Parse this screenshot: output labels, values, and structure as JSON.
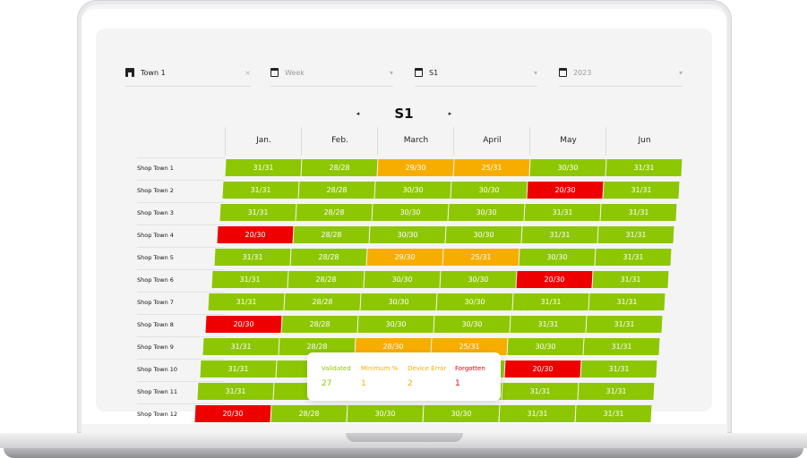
{
  "filters": {
    "shop": {
      "value": "Town 1",
      "clear": "×",
      "icon": "shop-icon"
    },
    "frequency": {
      "placeholder": "Week",
      "icon": "calendar-icon"
    },
    "period": {
      "value": "S1",
      "icon": "calendar-icon"
    },
    "year": {
      "placeholder": "2023",
      "icon": "calendar-icon"
    }
  },
  "nav": {
    "prev": "◂",
    "current": "S1",
    "next": "▸"
  },
  "months": [
    "Jan.",
    "Feb.",
    "March",
    "April",
    "May",
    "Jun"
  ],
  "colors": {
    "validated": "#8dc703",
    "minimum": "#f7ad00",
    "forgotten": "#ee0000"
  },
  "rows": [
    {
      "label": "Shop Town 1",
      "cells": [
        [
          "31/31",
          "green"
        ],
        [
          "28/28",
          "green"
        ],
        [
          "29/30",
          "orange"
        ],
        [
          "25/31",
          "orange"
        ],
        [
          "30/30",
          "green"
        ],
        [
          "31/31",
          "green"
        ]
      ]
    },
    {
      "label": "Shop Town 2",
      "cells": [
        [
          "31/31",
          "green"
        ],
        [
          "28/28",
          "green"
        ],
        [
          "30/30",
          "green"
        ],
        [
          "30/30",
          "green"
        ],
        [
          "20/30",
          "red"
        ],
        [
          "31/31",
          "green"
        ]
      ]
    },
    {
      "label": "Shop Town 3",
      "cells": [
        [
          "31/31",
          "green"
        ],
        [
          "28/28",
          "green"
        ],
        [
          "30/30",
          "green"
        ],
        [
          "30/30",
          "green"
        ],
        [
          "31/31",
          "green"
        ],
        [
          "31/31",
          "green"
        ]
      ]
    },
    {
      "label": "Shop Town 4",
      "cells": [
        [
          "20/30",
          "red"
        ],
        [
          "28/28",
          "green"
        ],
        [
          "30/30",
          "green"
        ],
        [
          "30/30",
          "green"
        ],
        [
          "31/31",
          "green"
        ],
        [
          "31/31",
          "green"
        ]
      ]
    },
    {
      "label": "Shop Town 5",
      "cells": [
        [
          "31/31",
          "green"
        ],
        [
          "28/28",
          "green"
        ],
        [
          "29/30",
          "orange"
        ],
        [
          "25/31",
          "orange"
        ],
        [
          "30/30",
          "green"
        ],
        [
          "31/31",
          "green"
        ]
      ]
    },
    {
      "label": "Shop Town 6",
      "cells": [
        [
          "31/31",
          "green"
        ],
        [
          "28/28",
          "green"
        ],
        [
          "30/30",
          "green"
        ],
        [
          "30/30",
          "green"
        ],
        [
          "20/30",
          "red"
        ],
        [
          "31/31",
          "green"
        ]
      ]
    },
    {
      "label": "Shop Town 7",
      "cells": [
        [
          "31/31",
          "green"
        ],
        [
          "28/28",
          "green"
        ],
        [
          "30/30",
          "green"
        ],
        [
          "30/30",
          "green"
        ],
        [
          "31/31",
          "green"
        ],
        [
          "31/31",
          "green"
        ]
      ]
    },
    {
      "label": "Shop Town 8",
      "cells": [
        [
          "20/30",
          "red"
        ],
        [
          "28/28",
          "green"
        ],
        [
          "30/30",
          "green"
        ],
        [
          "30/30",
          "green"
        ],
        [
          "31/31",
          "green"
        ],
        [
          "31/31",
          "green"
        ]
      ]
    },
    {
      "label": "Shop Town 9",
      "cells": [
        [
          "31/31",
          "green"
        ],
        [
          "28/28",
          "green"
        ],
        [
          "28/30",
          "orange"
        ],
        [
          "25/31",
          "orange"
        ],
        [
          "30/30",
          "green"
        ],
        [
          "31/31",
          "green"
        ]
      ]
    },
    {
      "label": "Shop Town 10",
      "cells": [
        [
          "31/31",
          "green"
        ],
        [
          "",
          "green"
        ],
        [
          "",
          "green"
        ],
        [
          "",
          "green"
        ],
        [
          "20/30",
          "red"
        ],
        [
          "31/31",
          "green"
        ]
      ]
    },
    {
      "label": "Shop Town 11",
      "cells": [
        [
          "31/31",
          "green"
        ],
        [
          "",
          "green"
        ],
        [
          "",
          "green"
        ],
        [
          "",
          "green"
        ],
        [
          "31/31",
          "green"
        ],
        [
          "31/31",
          "green"
        ]
      ]
    },
    {
      "label": "Shop Town 12",
      "cells": [
        [
          "20/30",
          "red"
        ],
        [
          "28/28",
          "green"
        ],
        [
          "30/30",
          "green"
        ],
        [
          "30/30",
          "green"
        ],
        [
          "31/31",
          "green"
        ],
        [
          "31/31",
          "green"
        ]
      ]
    }
  ],
  "legend": {
    "items": [
      {
        "label": "Validated",
        "value": "27",
        "tone": "green"
      },
      {
        "label": "Minimum %",
        "value": "1",
        "tone": "orange"
      },
      {
        "label": "Device Error",
        "value": "2",
        "tone": "orange"
      },
      {
        "label": "Forgotten",
        "value": "1",
        "tone": "red"
      }
    ]
  }
}
